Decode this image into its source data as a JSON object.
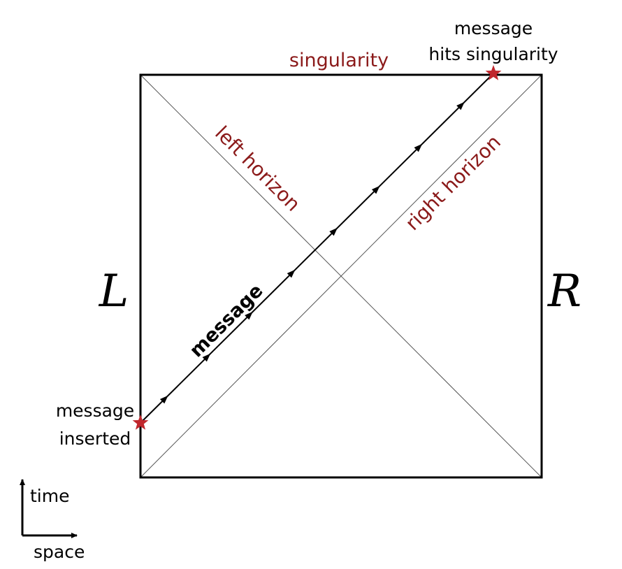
{
  "colors": {
    "label_red": "#8b1a1a",
    "star_red": "#c0262c",
    "frame": "#000000",
    "horizon_line": "#555555"
  },
  "labels": {
    "singularity": "singularity",
    "left_horizon": "left horizon",
    "right_horizon": "right horizon",
    "message": "message",
    "region_left": "L",
    "region_right": "R",
    "inserted_line1": "message",
    "inserted_line2": "inserted",
    "hits_line1": "message",
    "hits_line2": "hits singularity"
  },
  "axes_legend": {
    "vertical": "time",
    "horizontal": "space"
  },
  "icons": {
    "event_marker": "star-icon",
    "direction_marker": "arrowhead-icon"
  }
}
